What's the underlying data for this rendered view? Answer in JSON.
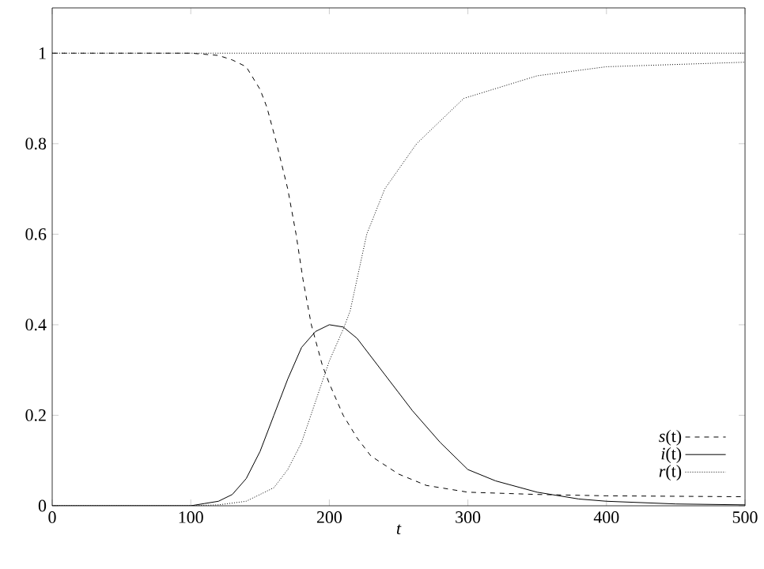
{
  "chart_data": {
    "type": "line",
    "xlabel": "t",
    "xlim": [
      0,
      500
    ],
    "ylim": [
      0,
      1.1
    ],
    "xticks": [
      0,
      100,
      200,
      300,
      400,
      500
    ],
    "yticks": [
      0,
      0.2,
      0.4,
      0.6,
      0.8,
      1
    ],
    "legend": "bottom right",
    "grid": false,
    "marker": "none",
    "ref_lines": [
      {
        "axis": "y",
        "value": 1,
        "color": "#000000",
        "line_style": "dotted"
      }
    ],
    "series": [
      {
        "name": "*s*(t)",
        "color": "#000000",
        "line_style": "dashed",
        "x": [
          0,
          100,
          120,
          130,
          140,
          150,
          155,
          162,
          170,
          176,
          181,
          187,
          195,
          200,
          210,
          220,
          230,
          250,
          270,
          300,
          350,
          400,
          500
        ],
        "values": [
          1.0,
          1.0,
          0.995,
          0.985,
          0.97,
          0.92,
          0.88,
          0.8,
          0.7,
          0.6,
          0.5,
          0.4,
          0.31,
          0.27,
          0.2,
          0.15,
          0.11,
          0.07,
          0.045,
          0.03,
          0.025,
          0.022,
          0.02
        ]
      },
      {
        "name": "*i*(t)",
        "color": "#000000",
        "line_style": "solid",
        "x": [
          0,
          100,
          110,
          120,
          130,
          140,
          150,
          160,
          170,
          180,
          190,
          200,
          210,
          220,
          230,
          240,
          250,
          260,
          280,
          300,
          320,
          350,
          380,
          400,
          450,
          500
        ],
        "values": [
          0,
          0,
          0.005,
          0.01,
          0.025,
          0.06,
          0.12,
          0.2,
          0.28,
          0.35,
          0.385,
          0.4,
          0.395,
          0.37,
          0.33,
          0.29,
          0.25,
          0.21,
          0.14,
          0.08,
          0.055,
          0.03,
          0.015,
          0.01,
          0.004,
          0.002
        ]
      },
      {
        "name": "*r*(t)",
        "color": "#000000",
        "line_style": "dotted",
        "x": [
          0,
          100,
          120,
          140,
          160,
          170,
          180,
          190,
          200,
          210,
          215,
          227,
          240,
          263,
          297,
          350,
          400,
          500
        ],
        "values": [
          0,
          0,
          0.002,
          0.01,
          0.04,
          0.08,
          0.14,
          0.23,
          0.32,
          0.39,
          0.43,
          0.6,
          0.7,
          0.8,
          0.9,
          0.95,
          0.97,
          0.98
        ]
      }
    ]
  }
}
